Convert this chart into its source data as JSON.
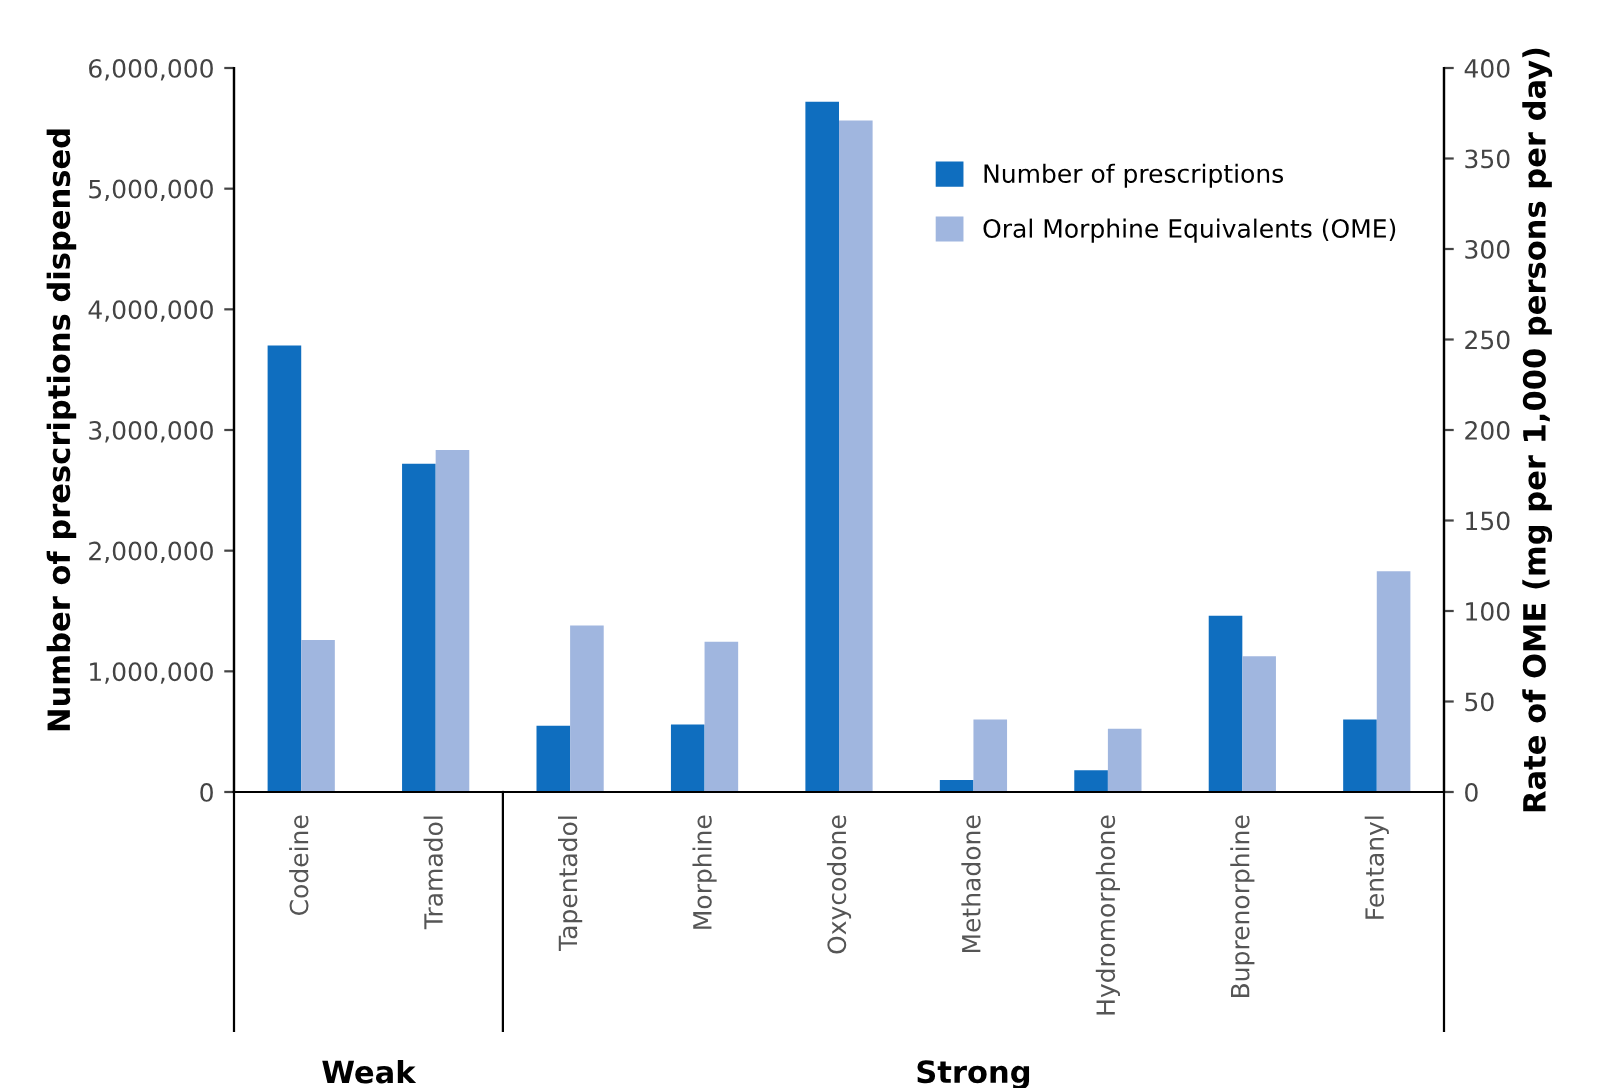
{
  "chart_data": {
    "type": "bar",
    "ylabel": "Number of prescriptions dispensed",
    "y2label": "Rate of OME (mg per 1,000 persons per day)",
    "categories": [
      "Codeine",
      "Tramadol",
      "Tapentadol",
      "Morphine",
      "Oxycodone",
      "Methadone",
      "Hydromorphone",
      "Buprenorphine",
      "Fentanyl"
    ],
    "series": [
      {
        "name": "Number of prescriptions",
        "color": "#0f6ebf",
        "values": [
          3700000,
          2720000,
          550000,
          560000,
          5720000,
          100000,
          180000,
          1460000,
          600000
        ]
      },
      {
        "name": "Oral Morphine Equivalents (OME)",
        "color": "#a0b6df",
        "axis": "y2",
        "values": [
          84,
          189,
          92,
          83,
          371,
          40,
          35,
          75,
          122
        ]
      }
    ],
    "ylim": [
      0,
      6000000
    ],
    "yticks": [
      {
        "value": 0,
        "label": "0"
      },
      {
        "value": 1000000,
        "label": "1,000,000"
      },
      {
        "value": 2000000,
        "label": "2,000,000"
      },
      {
        "value": 3000000,
        "label": "3,000,000"
      },
      {
        "value": 4000000,
        "label": "4,000,000"
      },
      {
        "value": 5000000,
        "label": "5,000,000"
      },
      {
        "value": 6000000,
        "label": "6,000,000"
      }
    ],
    "y2lim": [
      0,
      400
    ],
    "y2ticks": [
      0,
      50,
      100,
      150,
      200,
      250,
      300,
      350,
      400
    ],
    "annotations": [
      "Weak",
      "Strong"
    ],
    "legend": "top right",
    "grid": false
  }
}
